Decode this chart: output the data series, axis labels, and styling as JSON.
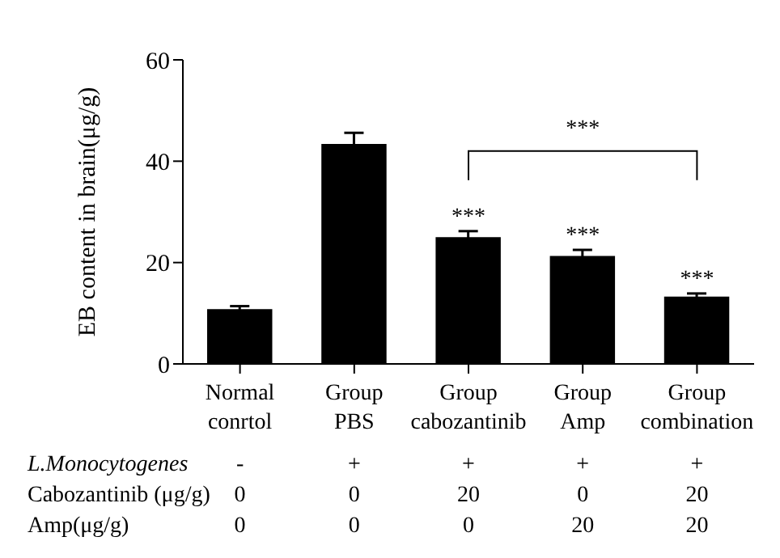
{
  "chart_data": {
    "type": "bar",
    "ylabel": "EB content in brain(μg/g)",
    "categories": [
      "Normal\nconrtol",
      "Group\nPBS",
      "Group\ncabozantinib",
      "Group\nAmp",
      "Group\ncombination"
    ],
    "values": [
      10.8,
      43.4,
      25.0,
      21.3,
      13.3
    ],
    "errors": [
      0.6,
      2.2,
      1.2,
      1.2,
      0.6
    ],
    "color": "#000000",
    "ylim": [
      0,
      60
    ],
    "yticks": [
      0,
      20,
      40,
      60
    ],
    "grid": false,
    "legend": false,
    "annotations": [
      {
        "text": "***",
        "x": "Group\ncabozantinib",
        "y": 26.2
      },
      {
        "text": "***",
        "x": "Group\nAmp",
        "y": 22.5
      },
      {
        "text": "***",
        "x": "Group\ncombination",
        "y": 13.9
      },
      "***",
      "L.Monocytogenes",
      "-",
      "+",
      "+",
      "+",
      "+",
      "Cabozantinib (μg/g)",
      "0",
      "0",
      "20",
      "0",
      "20",
      "Amp(μg/g)",
      "0",
      "0",
      "0",
      "20",
      "20"
    ]
  }
}
